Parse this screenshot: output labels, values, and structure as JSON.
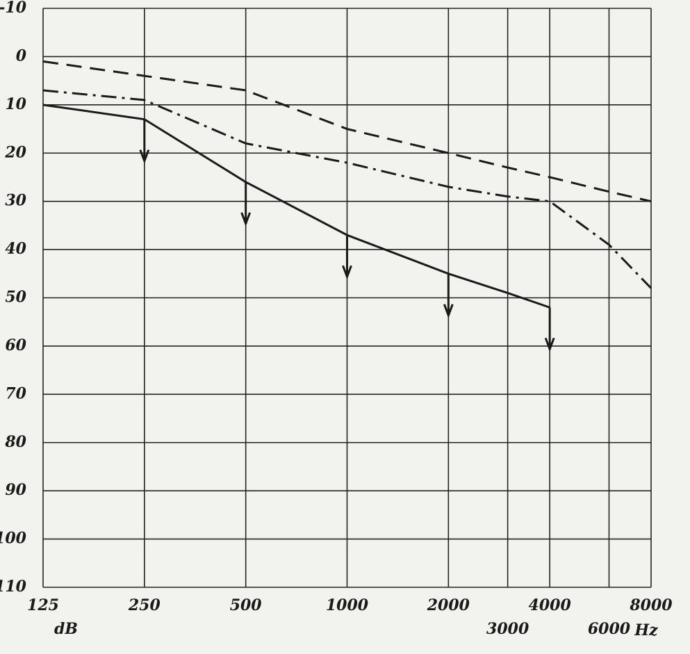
{
  "chart_data": {
    "type": "line",
    "x_label": "dB",
    "x_unit": "Hz",
    "x": [
      125,
      250,
      500,
      1000,
      2000,
      3000,
      4000,
      6000,
      8000
    ],
    "xlim": [
      125,
      8000
    ],
    "xscale": "log",
    "xticks": [
      125,
      250,
      500,
      1000,
      2000,
      3000,
      4000,
      6000,
      8000
    ],
    "ylim": [
      110,
      -10
    ],
    "yticks": [
      -10,
      0,
      10,
      20,
      30,
      40,
      50,
      60,
      70,
      80,
      90,
      100,
      110
    ],
    "grid": true,
    "series": [
      {
        "color": "#1a1a1a",
        "style": "dashed",
        "values": [
          1,
          4,
          7,
          15,
          20,
          23,
          25,
          28,
          30
        ]
      },
      {
        "color": "#1a1a1a",
        "style": "dash-dot",
        "values": [
          7,
          9,
          18,
          22,
          27,
          29,
          30,
          39,
          48
        ]
      },
      {
        "color": "#1a1a1a",
        "style": "solid",
        "values": [
          10,
          13,
          26,
          37,
          45,
          49,
          52,
          null,
          null
        ],
        "arrow_x": [
          250,
          500,
          1000,
          2000,
          4000
        ]
      }
    ]
  }
}
